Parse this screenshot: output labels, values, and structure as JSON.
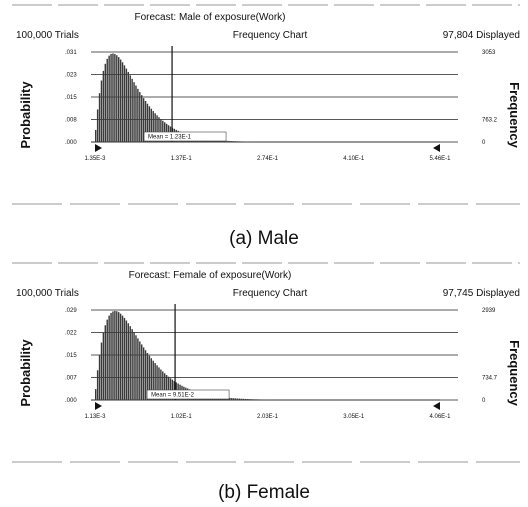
{
  "chart_data": [
    {
      "type": "bar",
      "title": "Forecast: Male of exposure(Work)",
      "subtitle": "Frequency Chart",
      "trials_label": "100,000 Trials",
      "displayed_label": "97,804 Displayed",
      "caption": "(a)  Male",
      "ylabel": "Probability",
      "ylabel_right": "Frequency",
      "yticks": [
        ".031",
        ".023",
        ".015",
        ".008",
        ".000"
      ],
      "yticks_right": [
        "3053",
        "",
        "",
        "763.2",
        "0"
      ],
      "xticks": [
        "1.35E-3",
        "1.37E-1",
        "2.74E-1",
        "4.10E-1",
        "5.46E-1"
      ],
      "xlim": [
        0.00135,
        0.546
      ],
      "ylim": [
        0,
        0.031
      ],
      "mean_label": "Mean = 1.23E-1",
      "mean_value": 0.123,
      "grid": true,
      "bins": 180,
      "peak_x": 0.03,
      "peak_y": 0.0305
    },
    {
      "type": "bar",
      "title": "Forecast: Female of exposure(Work)",
      "subtitle": "Frequency Chart",
      "trials_label": "100,000 Trials",
      "displayed_label": "97,745 Displayed",
      "caption": "(b) Female",
      "ylabel": "Probability",
      "ylabel_right": "Frequency",
      "yticks": [
        ".029",
        ".022",
        ".015",
        ".007",
        ".000"
      ],
      "yticks_right": [
        "2939",
        "",
        "",
        "734.7",
        "0"
      ],
      "xticks": [
        "1.13E-3",
        "1.02E-1",
        "2.03E-1",
        "3.05E-1",
        "4.06E-1"
      ],
      "xlim": [
        0.00113,
        0.406
      ],
      "ylim": [
        0,
        0.029
      ],
      "mean_label": "Mean = 9.51E-2",
      "mean_value": 0.0951,
      "grid": true,
      "bins": 180,
      "peak_x": 0.025,
      "peak_y": 0.0287
    }
  ]
}
